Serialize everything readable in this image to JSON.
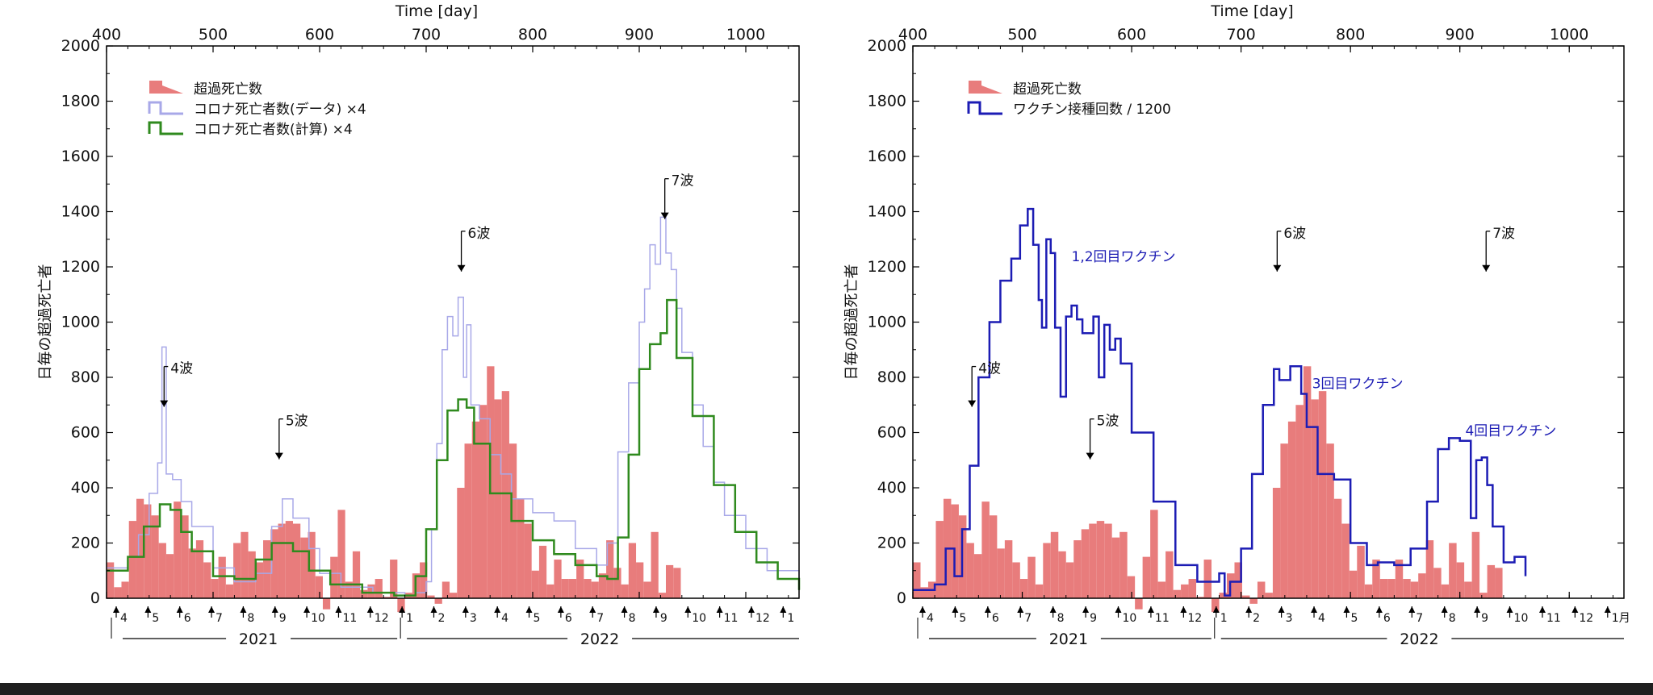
{
  "colors": {
    "excess": "#e87c7c",
    "covid_data": "#a8a8e8",
    "covid_calc": "#2f8a1e",
    "vaccine": "#1c1cb4",
    "annotation_blue": "#1c1cb4"
  },
  "chart_data": [
    {
      "type": "bar",
      "title": "",
      "xlabel": "Time [day]",
      "ylabel": "日毎の超過死亡者",
      "xlim": [
        400,
        1050
      ],
      "ylim": [
        0,
        2000
      ],
      "xticks": [
        400,
        500,
        600,
        700,
        800,
        900,
        1000
      ],
      "yticks": [
        0,
        200,
        400,
        600,
        800,
        1000,
        1200,
        1400,
        1600,
        1800,
        2000
      ],
      "legend": [
        {
          "key": "excess",
          "label": "超過死亡数"
        },
        {
          "key": "covid_data",
          "label": "コロナ死亡者数(データ) ×4"
        },
        {
          "key": "covid_calc",
          "label": "コロナ死亡者数(計算) ×4"
        }
      ],
      "legend_position": "top-left",
      "annotations": [
        {
          "label": "4波",
          "x": 454,
          "y": 810
        },
        {
          "label": "5波",
          "x": 562,
          "y": 620
        },
        {
          "label": "6波",
          "x": 733,
          "y": 1300
        },
        {
          "label": "7波",
          "x": 924,
          "y": 1490
        }
      ],
      "excess_bars": {
        "start": 400,
        "width": 7,
        "values": [
          130,
          40,
          60,
          280,
          360,
          340,
          300,
          200,
          160,
          350,
          300,
          180,
          210,
          130,
          70,
          150,
          50,
          200,
          240,
          170,
          130,
          210,
          250,
          270,
          280,
          270,
          220,
          240,
          80,
          -40,
          150,
          320,
          60,
          170,
          30,
          50,
          70,
          5,
          140,
          -50,
          20,
          90,
          130,
          10,
          -20,
          60,
          20,
          400,
          560,
          640,
          700,
          840,
          720,
          750,
          560,
          360,
          270,
          100,
          190,
          50,
          140,
          70,
          70,
          140,
          70,
          60,
          90,
          210,
          110,
          50,
          200,
          130,
          60,
          240,
          20,
          120,
          110
        ]
      },
      "series": [
        {
          "name": "コロナ死亡者数(データ) ×4",
          "key": "covid_data",
          "x": [
            400,
            420,
            430,
            440,
            448,
            452,
            456,
            462,
            470,
            480,
            500,
            520,
            540,
            555,
            565,
            575,
            590,
            600,
            620,
            650,
            680,
            690,
            700,
            705,
            710,
            715,
            720,
            725,
            730,
            735,
            738,
            742,
            750,
            760,
            770,
            780,
            800,
            820,
            840,
            860,
            870,
            880,
            890,
            900,
            905,
            910,
            915,
            920,
            925,
            930,
            935,
            940,
            950,
            960,
            970,
            980,
            1000,
            1020,
            1050
          ],
          "y": [
            110,
            150,
            230,
            380,
            490,
            910,
            450,
            430,
            350,
            260,
            110,
            60,
            90,
            260,
            360,
            290,
            180,
            90,
            40,
            20,
            10,
            20,
            60,
            250,
            560,
            900,
            1020,
            950,
            1090,
            800,
            990,
            700,
            650,
            520,
            450,
            360,
            310,
            280,
            180,
            120,
            200,
            530,
            780,
            1000,
            1120,
            1280,
            1210,
            1380,
            1250,
            1190,
            1050,
            890,
            700,
            550,
            420,
            300,
            180,
            100,
            30
          ]
        },
        {
          "name": "コロナ死亡者数(計算) ×4",
          "key": "covid_calc",
          "x": [
            400,
            420,
            435,
            450,
            460,
            470,
            480,
            500,
            520,
            540,
            555,
            565,
            575,
            590,
            610,
            640,
            670,
            690,
            700,
            710,
            720,
            730,
            738,
            745,
            760,
            780,
            800,
            820,
            840,
            860,
            870,
            880,
            890,
            900,
            910,
            920,
            926,
            935,
            950,
            970,
            990,
            1010,
            1030,
            1050
          ],
          "y": [
            100,
            150,
            260,
            340,
            320,
            240,
            170,
            80,
            70,
            140,
            200,
            200,
            170,
            100,
            50,
            20,
            10,
            80,
            250,
            500,
            680,
            720,
            690,
            560,
            380,
            280,
            210,
            160,
            120,
            80,
            70,
            220,
            520,
            830,
            920,
            960,
            1080,
            870,
            660,
            410,
            240,
            130,
            70,
            30
          ]
        }
      ],
      "bottom_labels": {
        "months": [
          "4",
          "5",
          "6",
          "7",
          "8",
          "9",
          "10",
          "11",
          "12",
          "1",
          "2",
          "3",
          "4",
          "5",
          "6",
          "7",
          "8",
          "9",
          "10",
          "11",
          "12",
          "1"
        ],
        "years": [
          "2021",
          "2022"
        ]
      }
    },
    {
      "type": "bar",
      "title": "",
      "xlabel": "Time [day]",
      "ylabel": "日毎の超過死亡者",
      "xlim": [
        400,
        1050
      ],
      "ylim": [
        0,
        2000
      ],
      "xticks": [
        400,
        500,
        600,
        700,
        800,
        900,
        1000
      ],
      "yticks": [
        0,
        200,
        400,
        600,
        800,
        1000,
        1200,
        1400,
        1600,
        1800,
        2000
      ],
      "legend": [
        {
          "key": "excess",
          "label": "超過死亡数"
        },
        {
          "key": "vaccine",
          "label": "ワクチン接種回数 / 1200"
        }
      ],
      "legend_position": "top-left",
      "annotations": [
        {
          "label": "4波",
          "x": 454,
          "y": 810
        },
        {
          "label": "5波",
          "x": 562,
          "y": 620
        },
        {
          "label": "6波",
          "x": 733,
          "y": 1300
        },
        {
          "label": "7波",
          "x": 924,
          "y": 1300
        }
      ],
      "vaccine_labels": [
        {
          "label": "1,2回目ワクチン",
          "x": 545,
          "y": 1220
        },
        {
          "label": "3回目ワクチン",
          "x": 765,
          "y": 760
        },
        {
          "label": "4回目ワクチン",
          "x": 905,
          "y": 590
        }
      ],
      "excess_bars": {
        "start": 400,
        "width": 7,
        "values": [
          130,
          40,
          60,
          280,
          360,
          340,
          300,
          200,
          160,
          350,
          300,
          180,
          210,
          130,
          70,
          150,
          50,
          200,
          240,
          170,
          130,
          210,
          250,
          270,
          280,
          270,
          220,
          240,
          80,
          -40,
          150,
          320,
          60,
          170,
          30,
          50,
          70,
          5,
          140,
          -50,
          20,
          90,
          130,
          10,
          -20,
          60,
          20,
          400,
          560,
          640,
          700,
          840,
          720,
          750,
          560,
          360,
          270,
          100,
          190,
          50,
          140,
          70,
          70,
          140,
          70,
          60,
          90,
          210,
          110,
          50,
          200,
          130,
          60,
          240,
          20,
          120,
          110
        ]
      },
      "series": [
        {
          "name": "ワクチン接種回数 / 1200",
          "key": "vaccine",
          "x": [
            400,
            420,
            430,
            438,
            445,
            452,
            460,
            470,
            480,
            490,
            498,
            505,
            510,
            515,
            518,
            522,
            526,
            530,
            535,
            540,
            545,
            550,
            555,
            565,
            570,
            575,
            580,
            585,
            590,
            600,
            620,
            640,
            660,
            680,
            685,
            690,
            700,
            710,
            720,
            730,
            735,
            745,
            755,
            760,
            770,
            785,
            800,
            815,
            825,
            840,
            855,
            870,
            880,
            890,
            900,
            910,
            915,
            920,
            925,
            930,
            940,
            950,
            960
          ],
          "y": [
            30,
            50,
            180,
            80,
            250,
            480,
            800,
            1000,
            1150,
            1230,
            1350,
            1410,
            1280,
            1080,
            980,
            1300,
            1250,
            980,
            730,
            1020,
            1060,
            1010,
            960,
            1020,
            800,
            990,
            900,
            940,
            850,
            600,
            350,
            120,
            60,
            90,
            10,
            60,
            180,
            450,
            700,
            830,
            790,
            840,
            740,
            620,
            450,
            430,
            200,
            120,
            130,
            120,
            180,
            350,
            540,
            580,
            570,
            290,
            500,
            510,
            410,
            260,
            130,
            150,
            80
          ]
        }
      ],
      "bottom_labels": {
        "months": [
          "4",
          "5",
          "6",
          "7",
          "8",
          "9",
          "10",
          "11",
          "12",
          "1",
          "2",
          "3",
          "4",
          "5",
          "6",
          "7",
          "8",
          "9",
          "10",
          "11",
          "12",
          "1月"
        ],
        "years": [
          "2021",
          "2022"
        ]
      }
    }
  ]
}
